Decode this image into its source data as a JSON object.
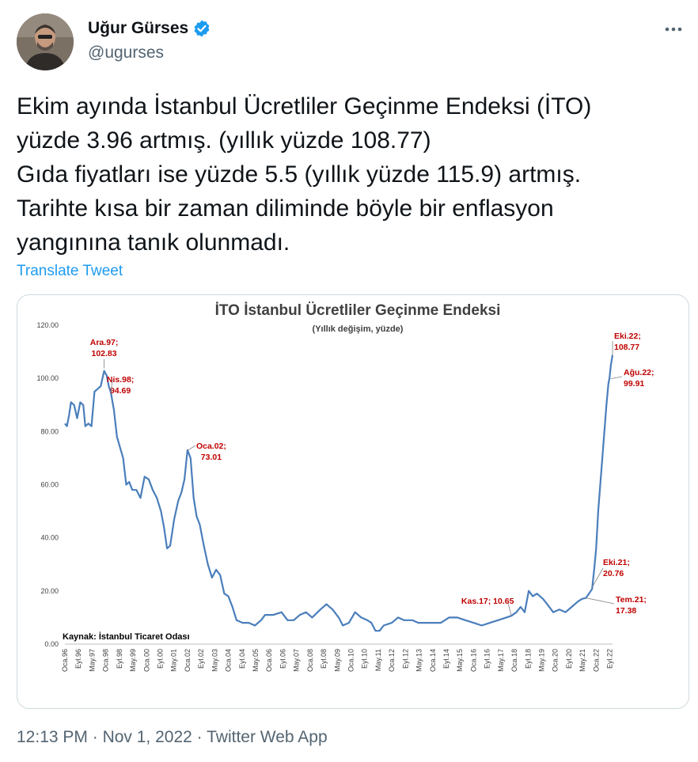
{
  "author": {
    "name": "Uğur Gürses",
    "handle": "@ugurses",
    "verified": true,
    "avatar_icon": "profile-photo"
  },
  "more_icon": "more-horizontal-icon",
  "tweet": {
    "lines": [
      "Ekim ayında İstanbul Ücretliler Geçinme Endeksi (İTO)",
      "yüzde 3.96 artmış. (yıllık yüzde 108.77)",
      "Gıda fiyatları ise yüzde 5.5 (yıllık yüzde 115.9) artmış.",
      "Tarihte kısa bir zaman diliminde böyle bir enflasyon",
      "yangınına tanık olunmadı."
    ],
    "translate_label": "Translate Tweet"
  },
  "footer": {
    "time": "12:13 PM",
    "date": "Nov 1, 2022",
    "source": "Twitter Web App",
    "separator": " · "
  },
  "colors": {
    "line": "#4a7ebb",
    "annotation": "#c00000",
    "title": "#404040",
    "link": "#1d9bf0",
    "muted": "#536471"
  },
  "chart_data": {
    "type": "line",
    "title": "İTO İstanbul Ücretliler Geçinme Endeksi",
    "subtitle": "(Yıllık değişim, yüzde)",
    "source_note": "Kaynak: İstanbul Ticaret Odası",
    "ylim": [
      0,
      120
    ],
    "y_ticks": [
      "120.00",
      "100.00",
      "80.00",
      "60.00",
      "40.00",
      "20.00",
      "0.00"
    ],
    "x_ticks": [
      "Oca.96",
      "Eyl.96",
      "May.97",
      "Oca.98",
      "Eyl.98",
      "May.99",
      "Oca.00",
      "Eyl.00",
      "May.01",
      "Oca.02",
      "Eyl.02",
      "May.03",
      "Oca.04",
      "Eyl.04",
      "May.05",
      "Oca.06",
      "Eyl.06",
      "May.07",
      "Oca.08",
      "Eyl.08",
      "May.09",
      "Oca.10",
      "Eyl.10",
      "May.11",
      "Oca.12",
      "Eyl.12",
      "May.13",
      "Oca.14",
      "Eyl.14",
      "May.15",
      "Oca.16",
      "Eyl.16",
      "May.17",
      "Oca.18",
      "Eyl.18",
      "May.19",
      "Oca.20",
      "Eyl.20",
      "May.21",
      "Oca.22",
      "Eyl.22"
    ],
    "x_range": [
      "Oca.96",
      "Eki.22"
    ],
    "grid": false,
    "series": [
      {
        "values": [
          [
            1996.0,
            83
          ],
          [
            1996.1,
            82
          ],
          [
            1996.2,
            86
          ],
          [
            1996.3,
            91
          ],
          [
            1996.45,
            90
          ],
          [
            1996.6,
            85
          ],
          [
            1996.75,
            91
          ],
          [
            1996.9,
            90
          ],
          [
            1997.0,
            82
          ],
          [
            1997.15,
            83
          ],
          [
            1997.3,
            82
          ],
          [
            1997.45,
            95
          ],
          [
            1997.6,
            96
          ],
          [
            1997.75,
            97
          ],
          [
            1997.92,
            102.83
          ],
          [
            1998.05,
            101
          ],
          [
            1998.15,
            97
          ],
          [
            1998.25,
            94.69
          ],
          [
            1998.4,
            88
          ],
          [
            1998.55,
            78
          ],
          [
            1998.7,
            74
          ],
          [
            1998.85,
            70
          ],
          [
            1999.0,
            60
          ],
          [
            1999.15,
            61
          ],
          [
            1999.3,
            58
          ],
          [
            1999.5,
            58
          ],
          [
            1999.7,
            55
          ],
          [
            1999.9,
            63
          ],
          [
            2000.1,
            62
          ],
          [
            2000.3,
            58
          ],
          [
            2000.5,
            55
          ],
          [
            2000.7,
            50
          ],
          [
            2000.85,
            44
          ],
          [
            2001.0,
            36
          ],
          [
            2001.15,
            37
          ],
          [
            2001.35,
            47
          ],
          [
            2001.55,
            54
          ],
          [
            2001.7,
            57
          ],
          [
            2001.85,
            62
          ],
          [
            2002.0,
            73.01
          ],
          [
            2002.15,
            70
          ],
          [
            2002.3,
            55
          ],
          [
            2002.45,
            48
          ],
          [
            2002.6,
            45
          ],
          [
            2002.8,
            37
          ],
          [
            2003.0,
            30
          ],
          [
            2003.2,
            25
          ],
          [
            2003.4,
            28
          ],
          [
            2003.6,
            26
          ],
          [
            2003.8,
            19
          ],
          [
            2004.0,
            18
          ],
          [
            2004.2,
            14
          ],
          [
            2004.4,
            9
          ],
          [
            2004.7,
            8
          ],
          [
            2005.0,
            8
          ],
          [
            2005.3,
            7
          ],
          [
            2005.6,
            9
          ],
          [
            2005.8,
            11
          ],
          [
            2006.2,
            11
          ],
          [
            2006.6,
            12
          ],
          [
            2006.9,
            9
          ],
          [
            2007.2,
            9
          ],
          [
            2007.5,
            11
          ],
          [
            2007.8,
            12
          ],
          [
            2008.1,
            10
          ],
          [
            2008.5,
            13
          ],
          [
            2008.8,
            15
          ],
          [
            2009.1,
            13
          ],
          [
            2009.4,
            10
          ],
          [
            2009.6,
            7
          ],
          [
            2009.9,
            8
          ],
          [
            2010.2,
            12
          ],
          [
            2010.5,
            10
          ],
          [
            2010.8,
            9
          ],
          [
            2011.0,
            8
          ],
          [
            2011.2,
            5
          ],
          [
            2011.4,
            5
          ],
          [
            2011.6,
            7
          ],
          [
            2012.0,
            8
          ],
          [
            2012.3,
            10
          ],
          [
            2012.6,
            9
          ],
          [
            2013.0,
            9
          ],
          [
            2013.3,
            8
          ],
          [
            2013.6,
            8
          ],
          [
            2014.0,
            8
          ],
          [
            2014.4,
            8
          ],
          [
            2014.8,
            10
          ],
          [
            2015.2,
            10
          ],
          [
            2015.6,
            9
          ],
          [
            2016.0,
            8
          ],
          [
            2016.4,
            7
          ],
          [
            2016.8,
            8
          ],
          [
            2017.2,
            9
          ],
          [
            2017.6,
            10
          ],
          [
            2017.85,
            10.65
          ],
          [
            2018.1,
            12
          ],
          [
            2018.3,
            14
          ],
          [
            2018.5,
            12
          ],
          [
            2018.7,
            20
          ],
          [
            2018.9,
            18
          ],
          [
            2019.1,
            19
          ],
          [
            2019.4,
            17
          ],
          [
            2019.6,
            15
          ],
          [
            2019.9,
            12
          ],
          [
            2020.2,
            13
          ],
          [
            2020.5,
            12
          ],
          [
            2020.8,
            14
          ],
          [
            2021.1,
            16
          ],
          [
            2021.3,
            17
          ],
          [
            2021.5,
            17.38
          ],
          [
            2021.65,
            19
          ],
          [
            2021.8,
            20.76
          ],
          [
            2021.9,
            28
          ],
          [
            2022.0,
            36
          ],
          [
            2022.1,
            50
          ],
          [
            2022.2,
            60
          ],
          [
            2022.3,
            70
          ],
          [
            2022.4,
            80
          ],
          [
            2022.5,
            90
          ],
          [
            2022.6,
            98
          ],
          [
            2022.65,
            99.91
          ],
          [
            2022.72,
            105
          ],
          [
            2022.8,
            108.77
          ]
        ]
      }
    ],
    "annotations": [
      {
        "label": "Ara.97;",
        "value": "102.83"
      },
      {
        "label": "Nis.98;",
        "value": "94.69"
      },
      {
        "label": "Oca.02;",
        "value": "73.01"
      },
      {
        "label": "Eki.22;",
        "value": "108.77"
      },
      {
        "label": "Ağu.22;",
        "value": "99.91"
      },
      {
        "label": "Eki.21;",
        "value": "20.76"
      },
      {
        "label": "Tem.21;",
        "value": "17.38"
      },
      {
        "label": "Kas.17; 10.65",
        "value": ""
      }
    ]
  }
}
